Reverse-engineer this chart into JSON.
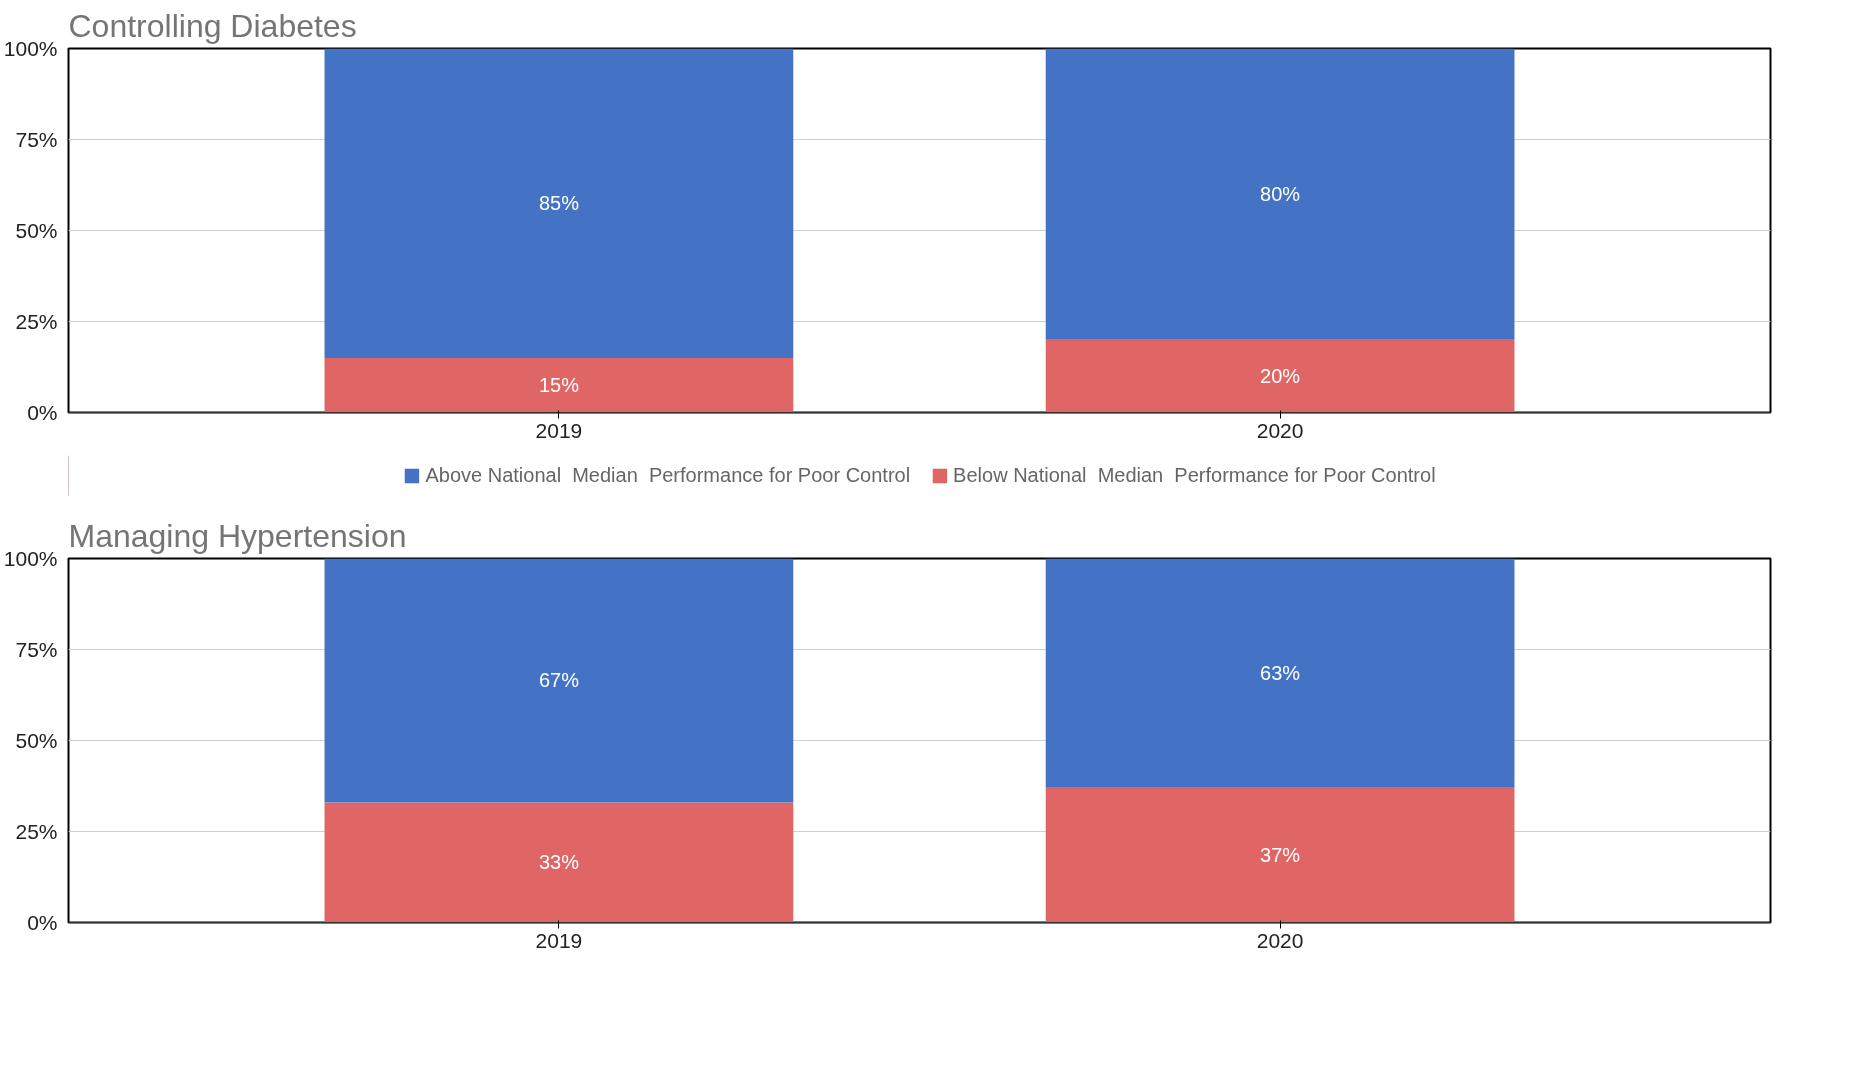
{
  "chart_data": [
    {
      "type": "bar",
      "title": "Controlling Diabetes",
      "categories": [
        "2019",
        "2020"
      ],
      "stacked": true,
      "ylim": [
        0,
        100
      ],
      "yticks": [
        {
          "value": 0,
          "label": "0%"
        },
        {
          "value": 25,
          "label": "25%"
        },
        {
          "value": 50,
          "label": "50%"
        },
        {
          "value": 75,
          "label": "75%"
        },
        {
          "value": 100,
          "label": "100%"
        }
      ],
      "grid": "y",
      "legend": "bottom",
      "series": [
        {
          "name": "Below National  Median  Performance for Poor Control",
          "color": "#e06666",
          "values": [
            15,
            20
          ],
          "value_labels": [
            "15%",
            "20%"
          ]
        },
        {
          "name": "Above National  Median  Performance for Poor Control",
          "color": "#4472c4",
          "values": [
            85,
            80
          ],
          "value_labels": [
            "85%",
            "80%"
          ]
        }
      ]
    },
    {
      "type": "bar",
      "title": "Managing Hypertension",
      "categories": [
        "2019",
        "2020"
      ],
      "stacked": true,
      "ylim": [
        0,
        100
      ],
      "yticks": [
        {
          "value": 0,
          "label": "0%"
        },
        {
          "value": 25,
          "label": "25%"
        },
        {
          "value": 50,
          "label": "50%"
        },
        {
          "value": 75,
          "label": "75%"
        },
        {
          "value": 100,
          "label": "100%"
        }
      ],
      "grid": "y",
      "series": [
        {
          "color": "#e06666",
          "values": [
            33,
            37
          ],
          "value_labels": [
            "33%",
            "37%"
          ]
        },
        {
          "color": "#4472c4",
          "values": [
            67,
            63
          ],
          "value_labels": [
            "67%",
            "63%"
          ]
        }
      ]
    }
  ]
}
